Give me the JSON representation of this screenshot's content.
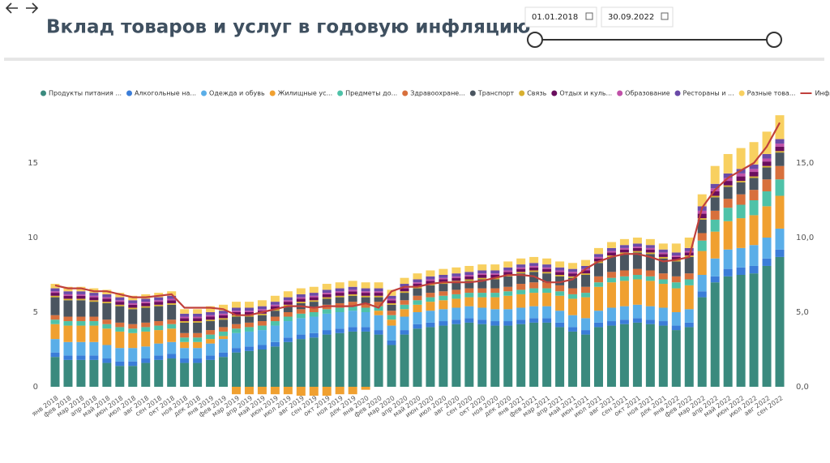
{
  "header": {
    "title": "Вклад товаров и услуг в годовую инфляцию",
    "date_from": "01.01.2018",
    "date_to": "30.09.2022"
  },
  "chart_data": {
    "type": "bar",
    "stacked": true,
    "categories": [
      "янв 2018",
      "фев 2018",
      "мар 2018",
      "апр 2018",
      "май 2018",
      "июн 2018",
      "июл 2018",
      "авг 2018",
      "сен 2018",
      "окт 2018",
      "ноя 2018",
      "дек 2018",
      "янв 2019",
      "фев 2019",
      "мар 2019",
      "апр 2019",
      "май 2019",
      "июн 2019",
      "июл 2019",
      "авг 2019",
      "сен 2019",
      "окт 2019",
      "ноя 2019",
      "дек 2019",
      "янв 2020",
      "фев 2020",
      "мар 2020",
      "апр 2020",
      "май 2020",
      "июн 2020",
      "июл 2020",
      "авг 2020",
      "сен 2020",
      "окт 2020",
      "ноя 2020",
      "дек 2020",
      "янв 2021",
      "фев 2021",
      "мар 2021",
      "апр 2021",
      "май 2021",
      "июн 2021",
      "июл 2021",
      "авг 2021",
      "сен 2021",
      "окт 2021",
      "ноя 2021",
      "дек 2021",
      "янв 2022",
      "фев 2022",
      "мар 2022",
      "апр 2022",
      "май 2022",
      "июн 2022",
      "июл 2022",
      "авг 2022",
      "сен 2022"
    ],
    "ylim": [
      -1,
      18.5
    ],
    "yticks": [
      0,
      5,
      10,
      15
    ],
    "y2lim": [
      -1,
      18.5
    ],
    "y2ticks": [
      {
        "value": 0,
        "label": "0,0"
      },
      {
        "value": 5,
        "label": "5,0"
      },
      {
        "value": 10,
        "label": "10,0"
      },
      {
        "value": 15,
        "label": "15,0"
      }
    ],
    "grid": false,
    "legend": "top",
    "series": [
      {
        "name": "Продукты питания ...",
        "color": "#3a8a7e",
        "values": [
          2.0,
          1.8,
          1.8,
          1.8,
          1.6,
          1.4,
          1.4,
          1.6,
          1.8,
          1.9,
          1.6,
          1.6,
          1.8,
          2.0,
          2.3,
          2.4,
          2.5,
          2.7,
          3.0,
          3.2,
          3.3,
          3.5,
          3.6,
          3.7,
          3.7,
          3.5,
          2.8,
          3.5,
          3.9,
          4.0,
          4.1,
          4.2,
          4.3,
          4.2,
          4.1,
          4.1,
          4.2,
          4.3,
          4.3,
          4.0,
          3.7,
          3.5,
          4.0,
          4.1,
          4.2,
          4.3,
          4.2,
          4.1,
          3.8,
          4.0,
          6.0,
          7.0,
          7.4,
          7.5,
          7.6,
          8.1,
          8.7
        ]
      },
      {
        "name": "Алкогольные на...",
        "color": "#3b7dd8",
        "values": [
          0.3,
          0.3,
          0.3,
          0.3,
          0.3,
          0.3,
          0.3,
          0.3,
          0.3,
          0.3,
          0.3,
          0.3,
          0.3,
          0.3,
          0.3,
          0.3,
          0.3,
          0.3,
          0.3,
          0.3,
          0.3,
          0.3,
          0.3,
          0.3,
          0.3,
          0.3,
          0.3,
          0.3,
          0.3,
          0.3,
          0.3,
          0.3,
          0.3,
          0.3,
          0.3,
          0.3,
          0.3,
          0.3,
          0.3,
          0.3,
          0.3,
          0.3,
          0.3,
          0.3,
          0.3,
          0.3,
          0.3,
          0.3,
          0.3,
          0.3,
          0.4,
          0.4,
          0.5,
          0.5,
          0.5,
          0.5,
          0.5
        ]
      },
      {
        "name": "Одежда и обувь",
        "color": "#5aaee8",
        "values": [
          0.9,
          0.9,
          0.9,
          0.9,
          0.9,
          0.9,
          0.9,
          0.8,
          0.8,
          0.8,
          0.7,
          0.7,
          0.8,
          0.9,
          1.0,
          1.0,
          1.0,
          1.1,
          1.1,
          1.1,
          1.1,
          1.1,
          1.1,
          1.1,
          1.0,
          1.0,
          1.0,
          0.9,
          0.8,
          0.8,
          0.8,
          0.8,
          0.8,
          0.8,
          0.8,
          0.8,
          0.8,
          0.8,
          0.8,
          0.8,
          0.8,
          0.8,
          0.8,
          0.9,
          0.9,
          0.9,
          0.9,
          0.9,
          0.9,
          0.9,
          1.1,
          1.2,
          1.3,
          1.3,
          1.4,
          1.4,
          1.4
        ]
      },
      {
        "name": "Жилищные ус...",
        "color": "#f0a030",
        "values": [
          1.0,
          1.1,
          1.1,
          1.1,
          1.1,
          1.1,
          1.0,
          1.0,
          0.9,
          0.9,
          0.4,
          0.4,
          0.3,
          0.2,
          -0.5,
          -0.5,
          -0.5,
          -0.5,
          -0.5,
          -0.6,
          -0.6,
          -0.6,
          -0.5,
          -0.5,
          -0.2,
          0.3,
          0.4,
          0.5,
          0.5,
          0.6,
          0.6,
          0.6,
          0.6,
          0.7,
          0.8,
          0.9,
          0.9,
          0.9,
          0.9,
          1.0,
          1.1,
          1.4,
          1.6,
          1.7,
          1.7,
          1.7,
          1.7,
          1.6,
          1.6,
          1.6,
          1.6,
          1.8,
          1.9,
          2.0,
          2.0,
          2.1,
          2.2
        ]
      },
      {
        "name": "Предметы до...",
        "color": "#4ec2a8",
        "values": [
          0.3,
          0.3,
          0.3,
          0.3,
          0.3,
          0.3,
          0.3,
          0.3,
          0.3,
          0.3,
          0.3,
          0.3,
          0.3,
          0.3,
          0.3,
          0.3,
          0.3,
          0.3,
          0.3,
          0.3,
          0.3,
          0.3,
          0.3,
          0.3,
          0.3,
          0.3,
          0.3,
          0.3,
          0.3,
          0.3,
          0.3,
          0.3,
          0.3,
          0.3,
          0.3,
          0.3,
          0.3,
          0.3,
          0.3,
          0.3,
          0.3,
          0.3,
          0.3,
          0.3,
          0.3,
          0.3,
          0.3,
          0.3,
          0.4,
          0.4,
          0.7,
          0.8,
          0.9,
          0.9,
          1.0,
          1.0,
          1.1
        ]
      },
      {
        "name": "Здравоохране...",
        "color": "#d8703c",
        "values": [
          0.3,
          0.3,
          0.3,
          0.3,
          0.3,
          0.3,
          0.3,
          0.3,
          0.3,
          0.3,
          0.3,
          0.3,
          0.3,
          0.3,
          0.3,
          0.3,
          0.3,
          0.3,
          0.3,
          0.3,
          0.3,
          0.3,
          0.3,
          0.3,
          0.3,
          0.3,
          0.3,
          0.3,
          0.3,
          0.3,
          0.3,
          0.3,
          0.3,
          0.3,
          0.3,
          0.3,
          0.4,
          0.4,
          0.4,
          0.4,
          0.4,
          0.4,
          0.4,
          0.4,
          0.4,
          0.4,
          0.4,
          0.4,
          0.4,
          0.4,
          0.5,
          0.6,
          0.6,
          0.7,
          0.7,
          0.8,
          0.9
        ]
      },
      {
        "name": "Транспорт",
        "color": "#4a5560",
        "values": [
          1.2,
          1.1,
          1.1,
          1.0,
          1.1,
          1.1,
          1.0,
          1.0,
          1.0,
          1.0,
          0.7,
          0.7,
          0.6,
          0.5,
          0.5,
          0.4,
          0.4,
          0.4,
          0.4,
          0.4,
          0.4,
          0.4,
          0.4,
          0.4,
          0.4,
          0.3,
          0.4,
          0.5,
          0.5,
          0.5,
          0.5,
          0.5,
          0.5,
          0.6,
          0.6,
          0.7,
          0.7,
          0.7,
          0.6,
          0.6,
          0.7,
          0.8,
          0.9,
          1.0,
          1.1,
          1.1,
          1.1,
          1.0,
          1.0,
          1.1,
          0.9,
          0.9,
          0.8,
          0.8,
          0.8,
          0.8,
          0.9
        ]
      },
      {
        "name": "Связь",
        "color": "#d8b030",
        "values": [
          0.1,
          0.1,
          0.1,
          0.1,
          0.1,
          0.1,
          0.1,
          0.1,
          0.1,
          0.1,
          0.1,
          0.1,
          0.1,
          0.1,
          0.1,
          0.1,
          0.1,
          0.1,
          0.1,
          0.1,
          0.1,
          0.1,
          0.1,
          0.1,
          0.1,
          0.1,
          0.1,
          0.1,
          0.1,
          0.1,
          0.1,
          0.1,
          0.1,
          0.1,
          0.1,
          0.1,
          0.1,
          0.1,
          0.1,
          0.1,
          0.1,
          0.1,
          0.1,
          0.1,
          0.1,
          0.1,
          0.1,
          0.1,
          0.1,
          0.1,
          0.1,
          0.1,
          0.1,
          0.1,
          0.1,
          0.1,
          0.1
        ]
      },
      {
        "name": "Отдых и куль...",
        "color": "#6a0e5e",
        "values": [
          0.2,
          0.2,
          0.2,
          0.2,
          0.2,
          0.2,
          0.2,
          0.2,
          0.2,
          0.2,
          0.2,
          0.2,
          0.2,
          0.2,
          0.2,
          0.2,
          0.2,
          0.2,
          0.2,
          0.2,
          0.2,
          0.2,
          0.2,
          0.2,
          0.2,
          0.2,
          0.2,
          0.2,
          0.2,
          0.2,
          0.2,
          0.2,
          0.2,
          0.2,
          0.2,
          0.2,
          0.2,
          0.2,
          0.2,
          0.2,
          0.2,
          0.2,
          0.2,
          0.2,
          0.2,
          0.2,
          0.2,
          0.2,
          0.2,
          0.2,
          0.3,
          0.3,
          0.3,
          0.3,
          0.3,
          0.3,
          0.3
        ]
      },
      {
        "name": "Образование",
        "color": "#c050a8",
        "values": [
          0.1,
          0.1,
          0.1,
          0.1,
          0.1,
          0.1,
          0.1,
          0.1,
          0.1,
          0.1,
          0.1,
          0.1,
          0.1,
          0.1,
          0.1,
          0.1,
          0.1,
          0.1,
          0.1,
          0.1,
          0.1,
          0.1,
          0.1,
          0.1,
          0.1,
          0.1,
          0.1,
          0.1,
          0.1,
          0.1,
          0.1,
          0.1,
          0.1,
          0.1,
          0.1,
          0.1,
          0.1,
          0.1,
          0.1,
          0.1,
          0.1,
          0.1,
          0.1,
          0.1,
          0.1,
          0.1,
          0.1,
          0.1,
          0.1,
          0.1,
          0.2,
          0.2,
          0.2,
          0.2,
          0.2,
          0.2,
          0.2
        ]
      },
      {
        "name": "Рестораны и ...",
        "color": "#6a4aa8",
        "values": [
          0.2,
          0.2,
          0.2,
          0.2,
          0.2,
          0.2,
          0.2,
          0.2,
          0.2,
          0.2,
          0.2,
          0.2,
          0.2,
          0.2,
          0.2,
          0.2,
          0.2,
          0.2,
          0.2,
          0.2,
          0.2,
          0.2,
          0.2,
          0.2,
          0.2,
          0.2,
          0.2,
          0.2,
          0.2,
          0.2,
          0.2,
          0.2,
          0.2,
          0.2,
          0.2,
          0.2,
          0.2,
          0.2,
          0.2,
          0.2,
          0.2,
          0.2,
          0.2,
          0.2,
          0.2,
          0.2,
          0.2,
          0.2,
          0.2,
          0.2,
          0.3,
          0.3,
          0.3,
          0.3,
          0.3,
          0.3,
          0.3
        ]
      },
      {
        "name": "Разные това...",
        "color": "#f8d060",
        "values": [
          0.3,
          0.3,
          0.3,
          0.3,
          0.3,
          0.3,
          0.3,
          0.3,
          0.3,
          0.3,
          0.3,
          0.3,
          0.4,
          0.4,
          0.4,
          0.4,
          0.4,
          0.4,
          0.4,
          0.4,
          0.4,
          0.4,
          0.4,
          0.4,
          0.4,
          0.4,
          0.4,
          0.4,
          0.4,
          0.4,
          0.4,
          0.4,
          0.4,
          0.4,
          0.4,
          0.4,
          0.4,
          0.4,
          0.4,
          0.4,
          0.4,
          0.4,
          0.4,
          0.4,
          0.4,
          0.4,
          0.4,
          0.4,
          0.6,
          0.7,
          0.8,
          1.2,
          1.3,
          1.4,
          1.5,
          1.5,
          1.6
        ]
      },
      {
        "name": "Инфляция",
        "color": "#c0403c",
        "type": "line",
        "axis": "y2",
        "values": [
          6.8,
          6.6,
          6.6,
          6.4,
          6.4,
          6.2,
          6.0,
          6.0,
          6.1,
          6.2,
          5.3,
          5.3,
          5.3,
          5.2,
          4.8,
          4.8,
          5.0,
          5.2,
          5.4,
          5.4,
          5.3,
          5.4,
          5.4,
          5.4,
          5.6,
          5.3,
          6.4,
          6.7,
          6.7,
          6.9,
          7.0,
          7.0,
          7.0,
          7.1,
          7.3,
          7.5,
          7.5,
          7.4,
          7.0,
          7.0,
          7.2,
          7.9,
          8.4,
          8.7,
          8.9,
          8.9,
          8.7,
          8.4,
          8.5,
          8.7,
          12.0,
          13.2,
          14.0,
          14.5,
          15.0,
          16.1,
          17.7
        ]
      }
    ]
  }
}
